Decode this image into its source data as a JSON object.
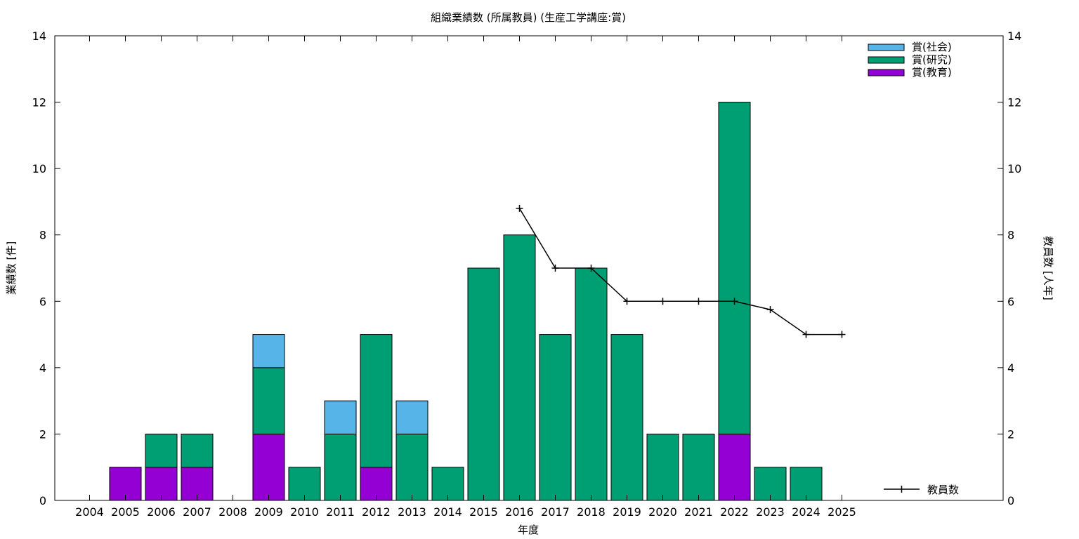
{
  "chart_data": {
    "type": "bar",
    "title": "組織業績数 (所属教員) (生産工学講座:賞)",
    "xlabel": "年度",
    "ylabel": "業績数 [件]",
    "y2label": "教員数 [人年]",
    "ylim": [
      0,
      14
    ],
    "y2lim": [
      0,
      14
    ],
    "yticks": [
      "0",
      "2",
      "4",
      "6",
      "8",
      "10",
      "12",
      "14"
    ],
    "y2ticks": [
      "0",
      "2",
      "4",
      "6",
      "8",
      "10",
      "12",
      "14"
    ],
    "grid": false,
    "stacked": true,
    "legend_position": "top-right",
    "categories": [
      "2004",
      "2005",
      "2006",
      "2007",
      "2008",
      "2009",
      "2010",
      "2011",
      "2012",
      "2013",
      "2014",
      "2015",
      "2016",
      "2017",
      "2018",
      "2019",
      "2020",
      "2021",
      "2022",
      "2023",
      "2024",
      "2025"
    ],
    "series": [
      {
        "name": "賞(教育)",
        "color": "#9400d3",
        "values": [
          0,
          1,
          1,
          1,
          0,
          2,
          0,
          0,
          1,
          0,
          0,
          0,
          0,
          0,
          0,
          0,
          0,
          0,
          2,
          0,
          0,
          0
        ]
      },
      {
        "name": "賞(研究)",
        "color": "#009e73",
        "values": [
          0,
          0,
          1,
          1,
          0,
          2,
          1,
          2,
          4,
          2,
          1,
          7,
          8,
          5,
          7,
          5,
          2,
          2,
          10,
          1,
          1,
          0
        ]
      },
      {
        "name": "賞(社会)",
        "color": "#56b4e9",
        "values": [
          0,
          0,
          0,
          0,
          0,
          1,
          0,
          1,
          0,
          1,
          0,
          0,
          0,
          0,
          0,
          0,
          0,
          0,
          0,
          0,
          0,
          0
        ]
      }
    ],
    "line_series": {
      "name": "教員数",
      "axis": "y2",
      "color": "#000000",
      "x": [
        "2016",
        "2017",
        "2018",
        "2019",
        "2020",
        "2021",
        "2022",
        "2023",
        "2024",
        "2025"
      ],
      "values": [
        8.8,
        7.0,
        7.0,
        6.0,
        6.0,
        6.0,
        6.0,
        5.75,
        5.0,
        5.0
      ]
    }
  }
}
